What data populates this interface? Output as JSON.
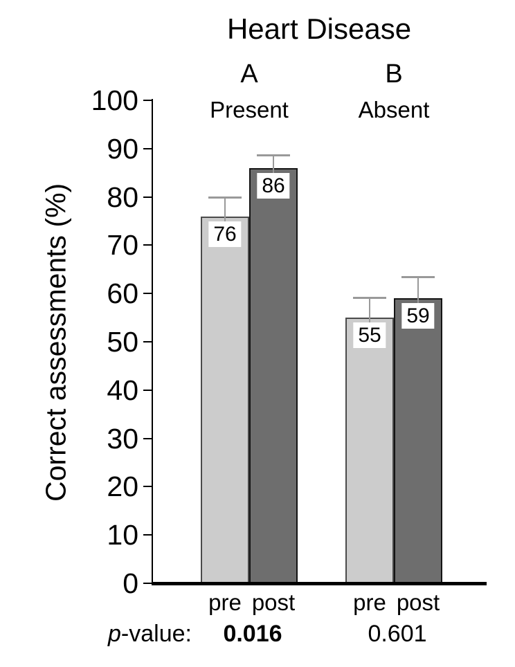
{
  "chart_data": {
    "type": "bar",
    "title": "Heart Disease",
    "ylabel": "Correct assessments (%)",
    "ylim": [
      0,
      100
    ],
    "ytick_step": 10,
    "yticks": [
      0,
      10,
      20,
      30,
      40,
      50,
      60,
      70,
      80,
      90,
      100
    ],
    "series_names": [
      "pre",
      "post"
    ],
    "grid": false,
    "legend_position": "none",
    "groups": [
      {
        "letter": "A",
        "label": "Present",
        "p_value": "0.016",
        "p_bold": true,
        "bars": [
          {
            "name": "pre",
            "value": 76,
            "value_label": "76",
            "error_up": 4.0
          },
          {
            "name": "post",
            "value": 86,
            "value_label": "86",
            "error_up": 2.7
          }
        ]
      },
      {
        "letter": "B",
        "label": "Absent",
        "p_value": "0.601",
        "p_bold": false,
        "bars": [
          {
            "name": "pre",
            "value": 55,
            "value_label": "55",
            "error_up": 4.2
          },
          {
            "name": "post",
            "value": 59,
            "value_label": "59",
            "error_up": 4.5
          }
        ]
      }
    ],
    "p_label_parts": {
      "italic": "p",
      "rest": "-value:"
    },
    "colors": {
      "pre_fill": "#cccccc",
      "pre_border": "#4a4a4a",
      "post_fill": "#6e6e6e",
      "post_border": "#141414",
      "error_bar": "#999999",
      "axis": "#000000",
      "value_label_bg": "#ffffff",
      "text": "#000000",
      "background": "#ffffff"
    }
  }
}
